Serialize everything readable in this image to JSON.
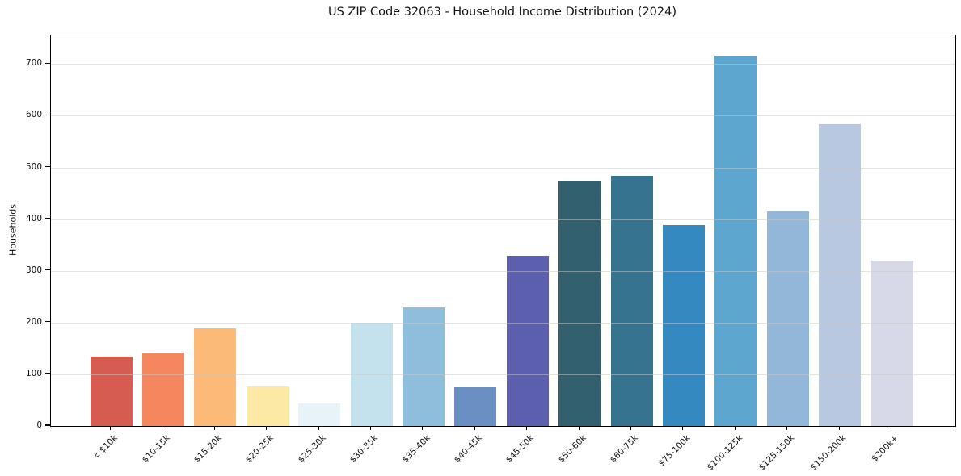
{
  "title": "US ZIP Code 32063 - Household Income Distribution (2024)",
  "chart_data": {
    "type": "bar",
    "title": "US ZIP Code 32063 - Household Income Distribution (2024)",
    "xlabel": "",
    "ylabel": "Households",
    "categories": [
      "< $10k",
      "$10-15k",
      "$15-20k",
      "$20-25k",
      "$25-30k",
      "$30-35k",
      "$35-40k",
      "$40-45k",
      "$45-50k",
      "$50-60k",
      "$60-75k",
      "$75-100k",
      "$100-125k",
      "$125-150k",
      "$150-200k",
      "$200k+"
    ],
    "values": [
      135,
      142,
      189,
      77,
      43,
      200,
      230,
      75,
      330,
      475,
      483,
      389,
      716,
      415,
      583,
      320
    ],
    "bar_colors": [
      "#d65c52",
      "#f4875e",
      "#fbba77",
      "#fde9a6",
      "#e7f3f9",
      "#c4e1ee",
      "#8fbddc",
      "#6a90c3",
      "#5c5fae",
      "#33606f",
      "#36738e",
      "#3489c0",
      "#5ca6cf",
      "#93b7d8",
      "#b9c8e1",
      "#d8d9e8"
    ],
    "ylim": [
      0,
      755
    ],
    "yticks": [
      0,
      100,
      200,
      300,
      400,
      500,
      600,
      700
    ],
    "grid": "horizontal-on-top",
    "legend": "none",
    "background": "#ffffff",
    "axis_color": "#000000",
    "gridline_color": "#e6e6e6"
  }
}
